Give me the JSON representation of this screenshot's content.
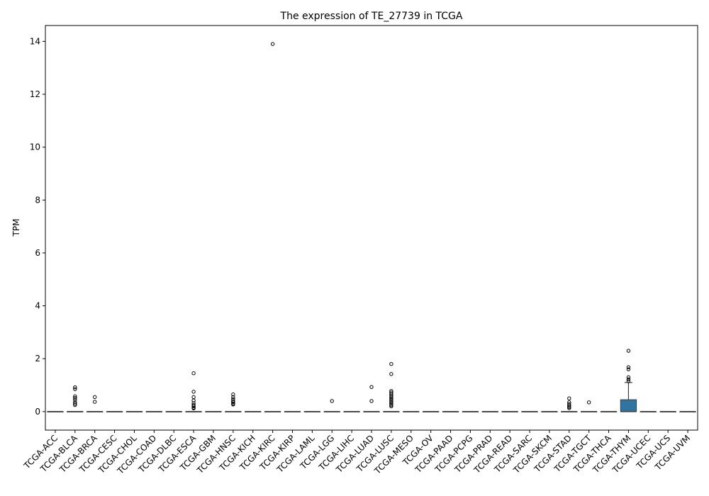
{
  "chart_data": {
    "type": "box",
    "title": "The expression of TE_27739 in TCGA",
    "xlabel": "",
    "ylabel": "TPM",
    "ylim": [
      -0.7,
      14.6
    ],
    "yticks": [
      0,
      2,
      4,
      6,
      8,
      10,
      12,
      14
    ],
    "grid": false,
    "box_color": "#3274a1",
    "categories": [
      "TCGA-ACC",
      "TCGA-BLCA",
      "TCGA-BRCA",
      "TCGA-CESC",
      "TCGA-CHOL",
      "TCGA-COAD",
      "TCGA-DLBC",
      "TCGA-ESCA",
      "TCGA-GBM",
      "TCGA-HNSC",
      "TCGA-KICH",
      "TCGA-KIRC",
      "TCGA-KIRP",
      "TCGA-LAML",
      "TCGA-LGG",
      "TCGA-LIHC",
      "TCGA-LUAD",
      "TCGA-LUSC",
      "TCGA-MESO",
      "TCGA-OV",
      "TCGA-PAAD",
      "TCGA-PCPG",
      "TCGA-PRAD",
      "TCGA-READ",
      "TCGA-SARC",
      "TCGA-SKCM",
      "TCGA-STAD",
      "TCGA-TGCT",
      "TCGA-THCA",
      "TCGA-THYM",
      "TCGA-UCEC",
      "TCGA-UCS",
      "TCGA-UVM"
    ],
    "boxes": [
      {
        "q1": 0,
        "median": 0,
        "q3": 0,
        "whisker_low": 0,
        "whisker_high": 0,
        "outliers": []
      },
      {
        "q1": 0,
        "median": 0,
        "q3": 0,
        "whisker_low": 0,
        "whisker_high": 0,
        "outliers": [
          0.92,
          0.85,
          0.58,
          0.52,
          0.45,
          0.36,
          0.3,
          0.25
        ]
      },
      {
        "q1": 0,
        "median": 0,
        "q3": 0,
        "whisker_low": 0,
        "whisker_high": 0,
        "outliers": [
          0.55,
          0.37
        ]
      },
      {
        "q1": 0,
        "median": 0,
        "q3": 0,
        "whisker_low": 0,
        "whisker_high": 0,
        "outliers": []
      },
      {
        "q1": 0,
        "median": 0,
        "q3": 0,
        "whisker_low": 0,
        "whisker_high": 0,
        "outliers": []
      },
      {
        "q1": 0,
        "median": 0,
        "q3": 0,
        "whisker_low": 0,
        "whisker_high": 0,
        "outliers": []
      },
      {
        "q1": 0,
        "median": 0,
        "q3": 0,
        "whisker_low": 0,
        "whisker_high": 0,
        "outliers": []
      },
      {
        "q1": 0,
        "median": 0,
        "q3": 0,
        "whisker_low": 0,
        "whisker_high": 0,
        "outliers": [
          1.45,
          0.75,
          0.55,
          0.42,
          0.32,
          0.25,
          0.2,
          0.15,
          0.12
        ]
      },
      {
        "q1": 0,
        "median": 0,
        "q3": 0,
        "whisker_low": 0,
        "whisker_high": 0,
        "outliers": []
      },
      {
        "q1": 0,
        "median": 0,
        "q3": 0,
        "whisker_low": 0,
        "whisker_high": 0,
        "outliers": [
          0.65,
          0.55,
          0.47,
          0.4,
          0.35,
          0.3,
          0.27
        ]
      },
      {
        "q1": 0,
        "median": 0,
        "q3": 0,
        "whisker_low": 0,
        "whisker_high": 0,
        "outliers": []
      },
      {
        "q1": 0,
        "median": 0,
        "q3": 0,
        "whisker_low": 0,
        "whisker_high": 0,
        "outliers": [
          13.9
        ]
      },
      {
        "q1": 0,
        "median": 0,
        "q3": 0,
        "whisker_low": 0,
        "whisker_high": 0,
        "outliers": []
      },
      {
        "q1": 0,
        "median": 0,
        "q3": 0,
        "whisker_low": 0,
        "whisker_high": 0,
        "outliers": []
      },
      {
        "q1": 0,
        "median": 0,
        "q3": 0,
        "whisker_low": 0,
        "whisker_high": 0,
        "outliers": [
          0.4
        ]
      },
      {
        "q1": 0,
        "median": 0,
        "q3": 0,
        "whisker_low": 0,
        "whisker_high": 0,
        "outliers": []
      },
      {
        "q1": 0,
        "median": 0,
        "q3": 0,
        "whisker_low": 0,
        "whisker_high": 0,
        "outliers": [
          0.93,
          0.4
        ]
      },
      {
        "q1": 0,
        "median": 0,
        "q3": 0,
        "whisker_low": 0,
        "whisker_high": 0,
        "outliers": [
          1.8,
          1.42,
          0.78,
          0.72,
          0.66,
          0.6,
          0.55,
          0.5,
          0.45,
          0.4,
          0.35,
          0.3,
          0.25,
          0.2
        ]
      },
      {
        "q1": 0,
        "median": 0,
        "q3": 0,
        "whisker_low": 0,
        "whisker_high": 0,
        "outliers": []
      },
      {
        "q1": 0,
        "median": 0,
        "q3": 0,
        "whisker_low": 0,
        "whisker_high": 0,
        "outliers": []
      },
      {
        "q1": 0,
        "median": 0,
        "q3": 0,
        "whisker_low": 0,
        "whisker_high": 0,
        "outliers": []
      },
      {
        "q1": 0,
        "median": 0,
        "q3": 0,
        "whisker_low": 0,
        "whisker_high": 0,
        "outliers": []
      },
      {
        "q1": 0,
        "median": 0,
        "q3": 0,
        "whisker_low": 0,
        "whisker_high": 0,
        "outliers": []
      },
      {
        "q1": 0,
        "median": 0,
        "q3": 0,
        "whisker_low": 0,
        "whisker_high": 0,
        "outliers": []
      },
      {
        "q1": 0,
        "median": 0,
        "q3": 0,
        "whisker_low": 0,
        "whisker_high": 0,
        "outliers": []
      },
      {
        "q1": 0,
        "median": 0,
        "q3": 0,
        "whisker_low": 0,
        "whisker_high": 0,
        "outliers": []
      },
      {
        "q1": 0,
        "median": 0,
        "q3": 0,
        "whisker_low": 0,
        "whisker_high": 0,
        "outliers": [
          0.5,
          0.35,
          0.28,
          0.22,
          0.17,
          0.13
        ]
      },
      {
        "q1": 0,
        "median": 0,
        "q3": 0,
        "whisker_low": 0,
        "whisker_high": 0,
        "outliers": [
          0.35
        ]
      },
      {
        "q1": 0,
        "median": 0,
        "q3": 0,
        "whisker_low": 0,
        "whisker_high": 0,
        "outliers": []
      },
      {
        "q1": 0,
        "median": 0,
        "q3": 0.45,
        "whisker_low": 0,
        "whisker_high": 1.1,
        "outliers": [
          2.3,
          1.68,
          1.6,
          1.3,
          1.22,
          1.15
        ]
      },
      {
        "q1": 0,
        "median": 0,
        "q3": 0,
        "whisker_low": 0,
        "whisker_high": 0,
        "outliers": []
      },
      {
        "q1": 0,
        "median": 0,
        "q3": 0,
        "whisker_low": 0,
        "whisker_high": 0,
        "outliers": []
      },
      {
        "q1": 0,
        "median": 0,
        "q3": 0,
        "whisker_low": 0,
        "whisker_high": 0,
        "outliers": []
      }
    ]
  }
}
